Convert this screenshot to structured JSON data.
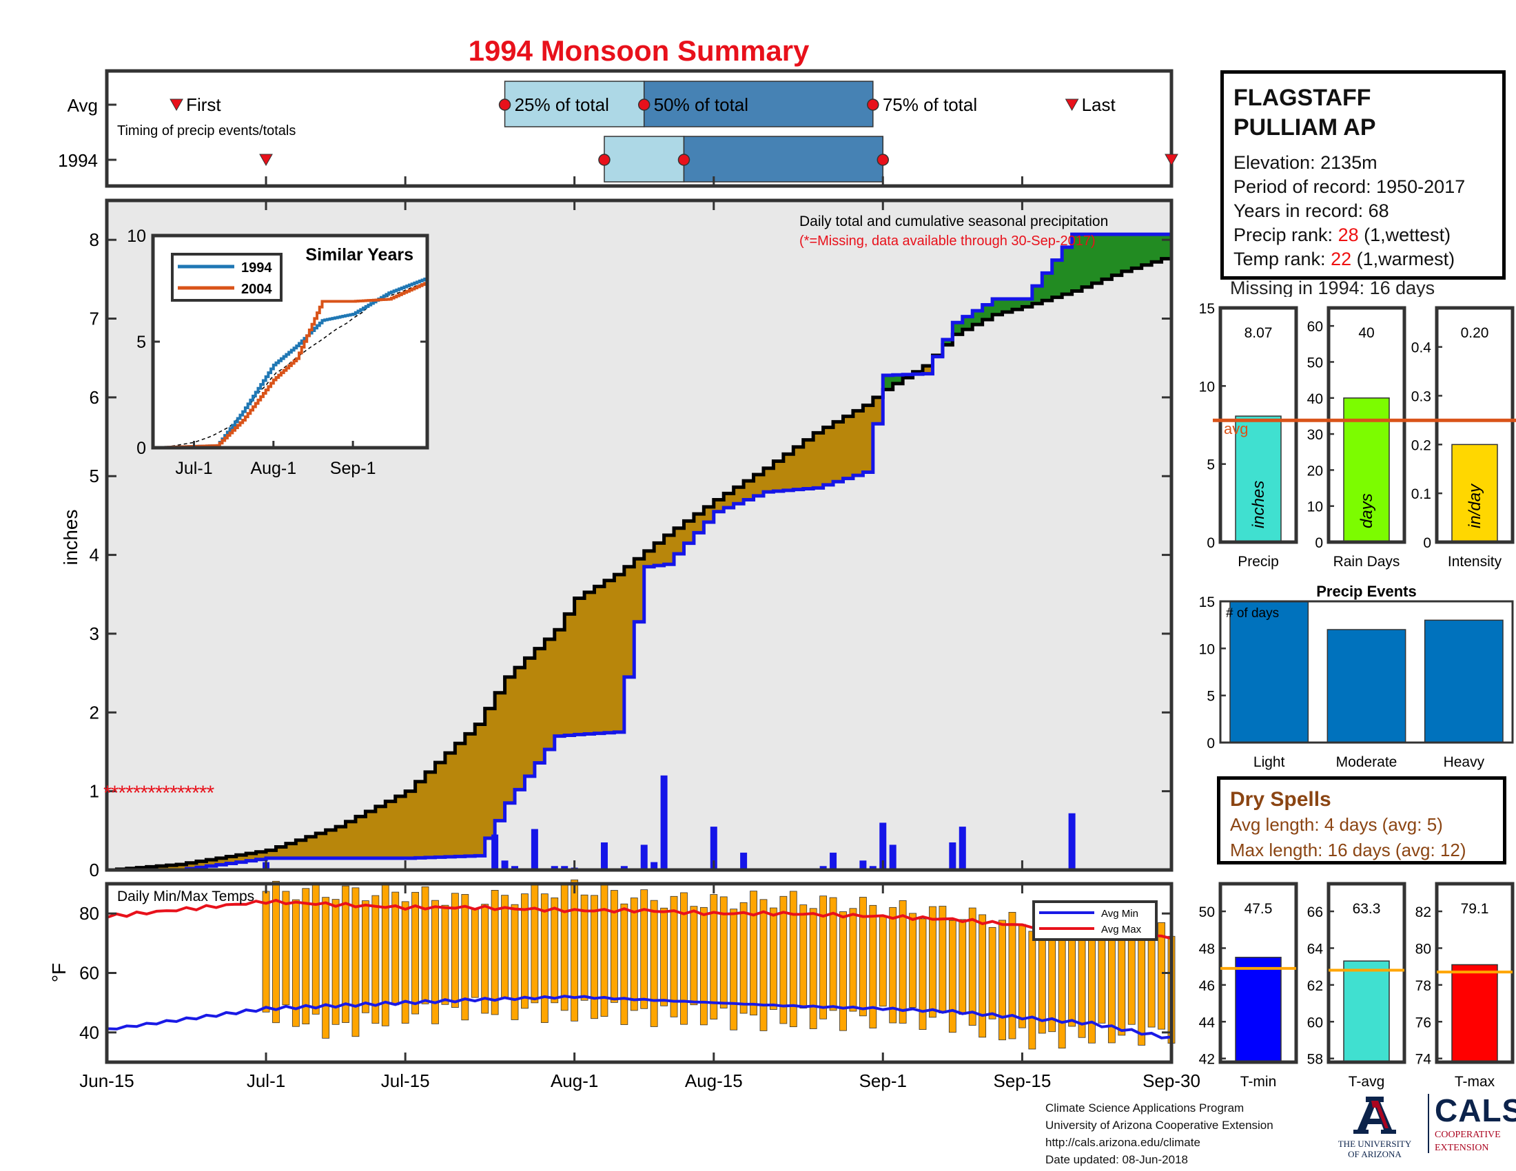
{
  "title": "1994 Monsoon Summary",
  "timing": {
    "row_avg_label": "Avg",
    "row_year_label": "1994",
    "caption": "Timing of precip events/totals",
    "labels": {
      "first": "First",
      "p25": "25% of total",
      "p50": "50% of total",
      "p75": "75% of total",
      "last": "Last"
    }
  },
  "station": {
    "name_line1": "FLAGSTAFF",
    "name_line2": "PULLIAM AP",
    "elevation": "Elevation: 2135m",
    "period": "Period of record: 1950-2017",
    "years": "Years in record: 68",
    "precip_rank_prefix": "Precip rank: ",
    "precip_rank_value": "28",
    "precip_rank_suffix": " (1,wettest)",
    "temp_rank_prefix": "Temp rank: ",
    "temp_rank_value": "22",
    "temp_rank_suffix": " (1,warmest)",
    "missing": "Missing in 1994: 16 days"
  },
  "main": {
    "ylabel": "inches",
    "note": "Daily total and cumulative seasonal precipitation",
    "note_missing": "(*=Missing, data available through 30-Sep-2017)",
    "missing_marker": "***************",
    "x_ticks": [
      "Jun-15",
      "Jul-1",
      "Jul-15",
      "Aug-1",
      "Aug-15",
      "Sep-1",
      "Sep-15",
      "Sep-30"
    ],
    "y_ticks": [
      "0",
      "1",
      "2",
      "3",
      "4",
      "5",
      "6",
      "7",
      "8"
    ]
  },
  "inset": {
    "title": "Similar Years",
    "legend": [
      "1994",
      "2004"
    ],
    "x_ticks": [
      "Jul-1",
      "Aug-1",
      "Sep-1"
    ],
    "y_ticks": [
      "0",
      "5",
      "10"
    ]
  },
  "temps": {
    "title": "Daily Min/Max Temps",
    "ylabel": "°F",
    "y_ticks": [
      "40",
      "60",
      "80"
    ],
    "legend_min": "Avg Min",
    "legend_max": "Avg Max"
  },
  "stats": {
    "precip": {
      "value_label": "8.07",
      "unit": "inches",
      "xlabel": "Precip",
      "y_ticks": [
        "0",
        "5",
        "10",
        "15"
      ]
    },
    "raindays": {
      "value_label": "40",
      "unit": "days",
      "xlabel": "Rain Days",
      "y_ticks": [
        "0",
        "10",
        "20",
        "30",
        "40",
        "50",
        "60"
      ]
    },
    "intensity": {
      "value_label": "0.20",
      "unit": "in/day",
      "xlabel": "Intensity",
      "y_ticks": [
        "0",
        "0.1",
        "0.2",
        "0.3",
        "0.4"
      ]
    },
    "avg_label": "avg"
  },
  "events": {
    "title": "Precip Events",
    "inner_label": "# of days",
    "y_ticks": [
      "0",
      "5",
      "10",
      "15"
    ],
    "categories": [
      "Light",
      "Moderate",
      "Heavy"
    ]
  },
  "dry_spells": {
    "title": "Dry Spells",
    "avg_length": "Avg length: 4 days (avg: 5)",
    "max_length": "Max length: 16 days (avg: 12)"
  },
  "temp_stats": {
    "tmin": {
      "value_label": "47.5",
      "xlabel": "T-min",
      "y_ticks": [
        "42",
        "44",
        "46",
        "48",
        "50"
      ]
    },
    "tavg": {
      "value_label": "63.3",
      "xlabel": "T-avg",
      "y_ticks": [
        "58",
        "60",
        "62",
        "64",
        "66"
      ]
    },
    "tmax": {
      "value_label": "79.1",
      "xlabel": "T-max",
      "y_ticks": [
        "74",
        "76",
        "78",
        "80",
        "82"
      ]
    }
  },
  "footer": {
    "line1": "Climate Science Applications Program",
    "line2": "University of Arizona Cooperative Extension",
    "line3": "http://cals.arizona.edu/climate",
    "line4": " Date updated: 08-Jun-2018"
  },
  "logos": {
    "ua_line1": "THE UNIVERSITY",
    "ua_line2": "OF ARIZONA",
    "cals_word": "CALS",
    "cals_sub1": "COOPERATIVE",
    "cals_sub2": "EXTENSION"
  },
  "colors": {
    "title": "#e8111b",
    "year_line": "#1515e8",
    "avg_line": "#000000",
    "deficit_fill": "#b8860b",
    "surplus_fill": "#228b22",
    "bg_fill": "#e8e8e8",
    "daily_bar": "#1515e8",
    "temp_bar": "#ffa500",
    "avg_min": "#1a1ae6",
    "avg_max": "#e8111b",
    "series_1994": "#1f77b4",
    "series_2004": "#d95319",
    "q_light": "#add8e6",
    "q_dark": "#4682b4",
    "marker": "#e8111b",
    "precip_bar": "#40e0d0",
    "raindays_bar": "#7cfc00",
    "intensity_bar": "#ffd700",
    "avg_bar_line": "#d95319",
    "events_bar": "#0072bd",
    "tmin_bar": "#0000ff",
    "tavg_bar": "#40e0d0",
    "tmax_bar": "#ff0000",
    "temp_avg_line": "#ffa500"
  },
  "chart_data": [
    {
      "type": "line",
      "name": "daily-and-cumulative-precip",
      "x": [
        "Jun-15",
        "Jun-22",
        "Jul-1",
        "Jul-8",
        "Jul-15",
        "Jul-22",
        "Jul-25",
        "Jul-30",
        "Aug-1",
        "Aug-5",
        "Aug-8",
        "Aug-10",
        "Aug-15",
        "Aug-20",
        "Aug-25",
        "Aug-30",
        "Sep-1",
        "Sep-5",
        "Sep-8",
        "Sep-12",
        "Sep-15",
        "Sep-20",
        "Sep-25",
        "Sep-30"
      ],
      "series": [
        {
          "name": "1994",
          "values": [
            0,
            0,
            0.15,
            0.15,
            0.15,
            0.18,
            0.85,
            1.7,
            1.72,
            1.75,
            3.85,
            3.88,
            4.55,
            4.8,
            4.85,
            5.05,
            6.28,
            6.3,
            6.95,
            7.25,
            7.25,
            8.07,
            8.07,
            8.07
          ]
        },
        {
          "name": "Avg",
          "values": [
            0,
            0.07,
            0.25,
            0.55,
            1.0,
            1.85,
            2.45,
            3.05,
            3.45,
            3.75,
            4.05,
            4.25,
            4.7,
            5.1,
            5.55,
            5.9,
            6.1,
            6.4,
            6.8,
            7.05,
            7.15,
            7.35,
            7.6,
            7.8
          ]
        }
      ],
      "daily_precip": {
        "dates": [
          "Jul-1",
          "Jul-24",
          "Jul-25",
          "Jul-26",
          "Jul-28",
          "Jul-30",
          "Jul-31",
          "Aug-1",
          "Aug-4",
          "Aug-6",
          "Aug-8",
          "Aug-9",
          "Aug-10",
          "Aug-15",
          "Aug-18",
          "Aug-26",
          "Aug-27",
          "Aug-30",
          "Aug-31",
          "Sep-1",
          "Sep-2",
          "Sep-8",
          "Sep-9",
          "Sep-20"
        ],
        "values": [
          0.1,
          0.45,
          0.12,
          0.05,
          0.52,
          0.05,
          0.05,
          0.03,
          0.35,
          0.05,
          0.32,
          0.1,
          1.2,
          0.55,
          0.22,
          0.05,
          0.22,
          0.12,
          0.05,
          0.6,
          0.32,
          0.35,
          0.55,
          0.72
        ]
      },
      "ylabel": "inches",
      "ylim": [
        0,
        8.5
      ],
      "xlim": [
        "Jun-15",
        "Sep-30"
      ]
    },
    {
      "type": "bar",
      "name": "daily-min-max-temps",
      "x": [
        "Jul-1",
        "Jul-8",
        "Jul-15",
        "Jul-22",
        "Aug-1",
        "Aug-8",
        "Aug-15",
        "Aug-22",
        "Sep-1",
        "Sep-8",
        "Sep-15",
        "Sep-22",
        "Sep-30"
      ],
      "series": [
        {
          "name": "Daily Max",
          "values": [
            88,
            87,
            87,
            84,
            89,
            85,
            84,
            85,
            82,
            80,
            77,
            76,
            74
          ]
        },
        {
          "name": "Daily Min",
          "values": [
            47,
            41,
            46,
            48,
            47,
            46,
            45,
            44,
            45,
            44,
            38,
            39,
            40
          ]
        },
        {
          "name": "Avg Min",
          "values": [
            48,
            49,
            50,
            51,
            52,
            51,
            50,
            49,
            48,
            47,
            45,
            43,
            38
          ]
        },
        {
          "name": "Avg Max",
          "values": [
            84,
            83,
            82,
            82,
            81,
            81,
            80,
            80,
            79,
            78,
            76,
            74,
            72
          ]
        }
      ],
      "ylabel": "°F",
      "ylim": [
        30,
        90
      ]
    },
    {
      "type": "line",
      "name": "similar-years",
      "title": "Similar Years",
      "x": [
        "Jun-15",
        "Jul-10",
        "Jul-20",
        "Aug-1",
        "Aug-10",
        "Aug-20",
        "Sep-1",
        "Sep-15",
        "Sep-30"
      ],
      "series": [
        {
          "name": "1994",
          "values": [
            0,
            0.1,
            1.7,
            3.9,
            4.8,
            6.0,
            6.3,
            7.3,
            8.0
          ]
        },
        {
          "name": "2004",
          "values": [
            0,
            0.1,
            1.3,
            3.2,
            4.2,
            6.9,
            6.9,
            7.0,
            7.8
          ]
        }
      ],
      "ylim": [
        0,
        10
      ]
    },
    {
      "type": "bar",
      "name": "season-totals",
      "categories": [
        "Precip",
        "Rain Days",
        "Intensity"
      ],
      "values": [
        8.07,
        40,
        0.2
      ],
      "averages": [
        7.8,
        33,
        0.235
      ]
    },
    {
      "type": "bar",
      "name": "precip-events",
      "title": "Precip Events",
      "categories": [
        "Light",
        "Moderate",
        "Heavy"
      ],
      "values": [
        15,
        12,
        13
      ],
      "ylim": [
        0,
        15
      ]
    },
    {
      "type": "bar",
      "name": "season-temps",
      "categories": [
        "T-min",
        "T-avg",
        "T-max"
      ],
      "values": [
        47.5,
        63.3,
        79.1
      ],
      "averages": [
        46.9,
        62.8,
        78.7
      ]
    }
  ]
}
